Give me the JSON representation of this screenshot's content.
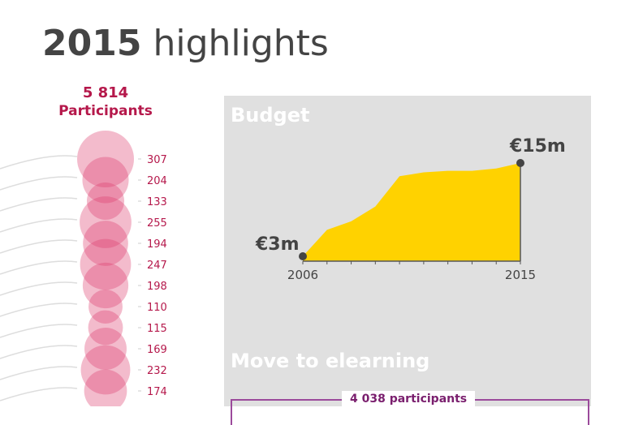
{
  "title": {
    "year": "2015",
    "rest": "highlights"
  },
  "participants": {
    "total": "5 814",
    "label": "Participants",
    "values": [
      307,
      204,
      133,
      255,
      194,
      247,
      198,
      110,
      115,
      169,
      232,
      174
    ]
  },
  "colors": {
    "bubble": "#dc3c6e",
    "accent": "#b5184b",
    "area": "#ffd200",
    "panel": "#e0e0e0",
    "purple": "#7a1f6e"
  },
  "budget": {
    "heading": "Budget"
  },
  "elearning": {
    "heading": "Move to elearning",
    "participants": "4 038 participants"
  },
  "chart_data": {
    "type": "area",
    "title": "Budget",
    "x": [
      2006,
      2007,
      2008,
      2009,
      2010,
      2011,
      2012,
      2013,
      2014,
      2015
    ],
    "values": [
      3,
      6.4,
      7.5,
      9.4,
      13.3,
      13.8,
      14.0,
      14.0,
      14.3,
      15
    ],
    "unit": "€m",
    "tick_labels": [
      "2006",
      "2015"
    ],
    "annotations": [
      {
        "x": 2006,
        "label": "€3m"
      },
      {
        "x": 2015,
        "label": "€15m"
      }
    ],
    "grid": false
  }
}
